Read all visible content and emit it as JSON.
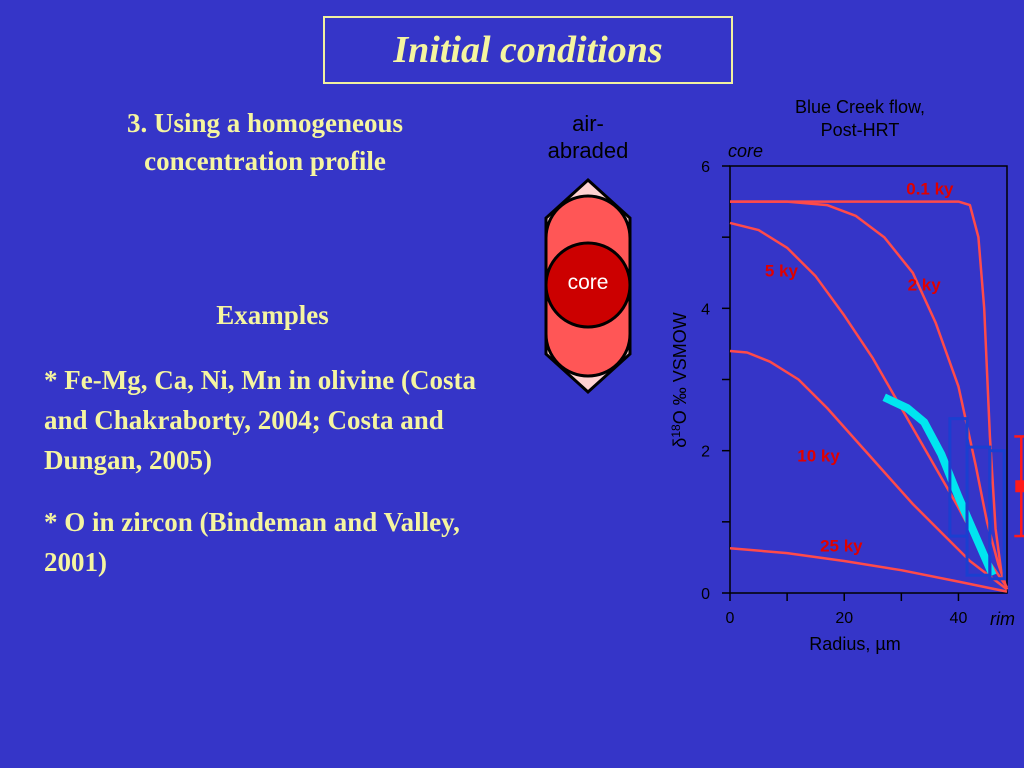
{
  "slide": {
    "title": "Initial conditions",
    "subtitle": "3. Using a homogeneous concentration profile",
    "examples_heading": "Examples",
    "examples": [
      " * Fe-Mg, Ca, Ni, Mn in olivine (Costa and Chakraborty, 2004; Costa and Dungan, 2005)",
      "* O in zircon (Bindeman and Valley, 2001)"
    ]
  },
  "crystal": {
    "label_line1": "air-",
    "label_line2": "abraded",
    "core_label": "core",
    "colors": {
      "outer": "#ffd2d2",
      "middle": "#ff5656",
      "core": "#cc0000"
    }
  },
  "chart_data": {
    "type": "line",
    "title_line1": "Blue Creek flow,",
    "title_line2": "Post-HRT",
    "xlabel": "Radius, µm",
    "ylabel": "δ18O ‰ VSMOW",
    "ylabel_prefix": "δ",
    "ylabel_sup": "18",
    "ylabel_main": "O ‰ VSMOW",
    "xlim": [
      0,
      48.5
    ],
    "ylim": [
      0,
      6
    ],
    "xticks": [
      0,
      20,
      40
    ],
    "xminor": [
      10,
      30
    ],
    "yticks": [
      0,
      2,
      4,
      6
    ],
    "yminor": [
      1,
      3,
      5
    ],
    "core_label": "core",
    "rim_label": "rim",
    "series": [
      {
        "name": "0.1 ky",
        "color": "#ff4a4a",
        "label_color": "#e00000",
        "points": [
          [
            0,
            5.5
          ],
          [
            20,
            5.5
          ],
          [
            40,
            5.5
          ],
          [
            42,
            5.45
          ],
          [
            43.5,
            5.0
          ],
          [
            44.5,
            4.0
          ],
          [
            45.5,
            2.2
          ],
          [
            46.5,
            0.9
          ],
          [
            47.5,
            0.3
          ],
          [
            48.5,
            0.05
          ]
        ]
      },
      {
        "name": "2 ky",
        "color": "#ff4a4a",
        "label_color": "#e00000",
        "points": [
          [
            0,
            5.5
          ],
          [
            10,
            5.5
          ],
          [
            17,
            5.45
          ],
          [
            22,
            5.3
          ],
          [
            27,
            5.0
          ],
          [
            32,
            4.5
          ],
          [
            36,
            3.8
          ],
          [
            40,
            2.9
          ],
          [
            43,
            1.8
          ],
          [
            45,
            1.0
          ],
          [
            47,
            0.4
          ],
          [
            48.5,
            0.05
          ]
        ]
      },
      {
        "name": "5 ky",
        "color": "#ff4a4a",
        "label_color": "#e00000",
        "points": [
          [
            0,
            5.2
          ],
          [
            5,
            5.1
          ],
          [
            10,
            4.85
          ],
          [
            15,
            4.45
          ],
          [
            20,
            3.9
          ],
          [
            25,
            3.3
          ],
          [
            30,
            2.6
          ],
          [
            35,
            1.9
          ],
          [
            40,
            1.2
          ],
          [
            44,
            0.6
          ],
          [
            48.5,
            0.08
          ]
        ]
      },
      {
        "name": "10 ky",
        "color": "#ff4a4a",
        "label_color": "#e00000",
        "points": [
          [
            0,
            3.4
          ],
          [
            3,
            3.38
          ],
          [
            7,
            3.25
          ],
          [
            12,
            3.0
          ],
          [
            17,
            2.6
          ],
          [
            22,
            2.15
          ],
          [
            27,
            1.7
          ],
          [
            32,
            1.25
          ],
          [
            37,
            0.85
          ],
          [
            42,
            0.45
          ],
          [
            48.5,
            0.05
          ]
        ]
      },
      {
        "name": "25 ky",
        "color": "#ff4a4a",
        "label_color": "#e00000",
        "points": [
          [
            0,
            0.63
          ],
          [
            10,
            0.56
          ],
          [
            20,
            0.45
          ],
          [
            30,
            0.32
          ],
          [
            40,
            0.16
          ],
          [
            48.5,
            0.02
          ]
        ]
      }
    ],
    "series_labels": [
      {
        "name": "0.1 ky",
        "x": 35,
        "y": 5.6
      },
      {
        "name": "5 ky",
        "x": 9,
        "y": 4.45
      },
      {
        "name": "2 ky",
        "x": 34,
        "y": 4.25
      },
      {
        "name": "10 ky",
        "x": 15.5,
        "y": 1.85
      },
      {
        "name": "25 ky",
        "x": 19.5,
        "y": 0.58
      }
    ],
    "fit_curve": {
      "color": "#00e5f0",
      "points": [
        [
          27,
          2.75
        ],
        [
          31,
          2.6
        ],
        [
          34,
          2.4
        ],
        [
          37,
          1.95
        ],
        [
          40,
          1.35
        ],
        [
          43,
          0.8
        ],
        [
          46,
          0.25
        ]
      ]
    },
    "measurement_boxes": [
      {
        "color": "#1a3fd0",
        "x": [
          38.5,
          41.5
        ],
        "y": [
          0.8,
          2.45
        ]
      },
      {
        "color": "#1a3fd0",
        "x": [
          41.5,
          45.5
        ],
        "y": [
          0.25,
          2.05
        ]
      },
      {
        "color": "#1a3fd0",
        "x": [
          45.5,
          48.0
        ],
        "y": [
          0.2,
          2.0
        ]
      }
    ],
    "error_bar": {
      "color": "#ff1a1a",
      "x": 51,
      "y": 1.5,
      "y_low": 0.8,
      "y_high": 2.2
    }
  }
}
